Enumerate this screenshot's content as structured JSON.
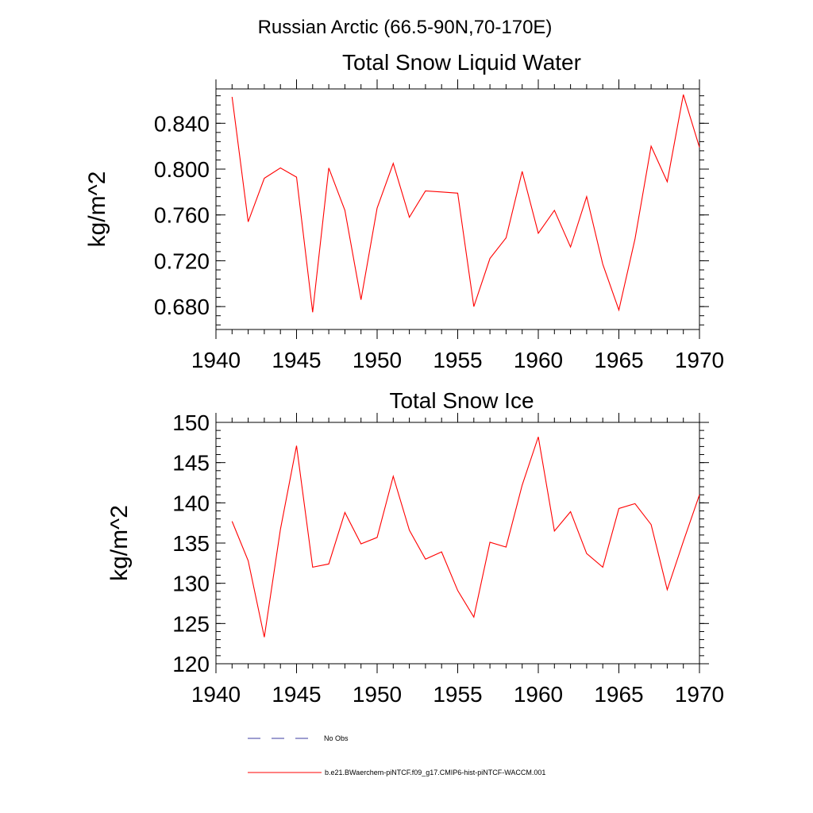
{
  "figure": {
    "title": "Russian Arctic (66.5-90N,70-170E)"
  },
  "colors": {
    "model_line": "#ff0000",
    "obs_line": "#3b3ba0",
    "axis": "#000000"
  },
  "legend": {
    "placement": "bottom-left",
    "items": [
      {
        "label": "No Obs",
        "style": "dashed",
        "color": "#3b3ba0"
      },
      {
        "label": "b.e21.BWaerchem-piNTCF.f09_g17.CMIP6-hist-piNTCF-WACCM.001",
        "style": "solid",
        "color": "#ff0000"
      }
    ]
  },
  "chart_data": [
    {
      "type": "line",
      "title": "Total Snow Liquid Water",
      "xlabel": "",
      "ylabel": "kg/m^2",
      "xlim": [
        1940,
        1970
      ],
      "ylim": [
        0.66,
        0.87
      ],
      "x_ticks": [
        1940,
        1945,
        1950,
        1955,
        1960,
        1965,
        1970
      ],
      "x_tick_labels": [
        "1940",
        "1945",
        "1950",
        "1955",
        "1960",
        "1965",
        "1970"
      ],
      "y_ticks": [
        0.68,
        0.72,
        0.76,
        0.8,
        0.84
      ],
      "y_tick_labels": [
        "0.680",
        "0.720",
        "0.760",
        "0.800",
        "0.840"
      ],
      "grid": false,
      "series": [
        {
          "color": "#ff0000",
          "x": [
            1941,
            1942,
            1943,
            1944,
            1945,
            1946,
            1947,
            1948,
            1949,
            1950,
            1951,
            1952,
            1953,
            1954,
            1955,
            1956,
            1957,
            1958,
            1959,
            1960,
            1961,
            1962,
            1963,
            1964,
            1965,
            1966,
            1967,
            1968,
            1969,
            1970
          ],
          "values": [
            0.863,
            0.754,
            0.792,
            0.801,
            0.793,
            0.675,
            0.801,
            0.764,
            0.686,
            0.766,
            0.805,
            0.758,
            0.781,
            0.78,
            0.779,
            0.68,
            0.722,
            0.74,
            0.798,
            0.744,
            0.764,
            0.732,
            0.776,
            0.717,
            0.677,
            0.739,
            0.82,
            0.789,
            0.865,
            0.819
          ]
        }
      ]
    },
    {
      "type": "line",
      "title": "Total Snow Ice",
      "xlabel": "",
      "ylabel": "kg/m^2",
      "xlim": [
        1940,
        1970
      ],
      "ylim": [
        120,
        150
      ],
      "x_ticks": [
        1940,
        1945,
        1950,
        1955,
        1960,
        1965,
        1970
      ],
      "x_tick_labels": [
        "1940",
        "1945",
        "1950",
        "1955",
        "1960",
        "1965",
        "1970"
      ],
      "y_ticks": [
        120,
        125,
        130,
        135,
        140,
        145,
        150
      ],
      "y_tick_labels": [
        "120",
        "125",
        "130",
        "135",
        "140",
        "145",
        "150"
      ],
      "grid": false,
      "series": [
        {
          "color": "#ff0000",
          "x": [
            1941,
            1942,
            1943,
            1944,
            1945,
            1946,
            1947,
            1948,
            1949,
            1950,
            1951,
            1952,
            1953,
            1954,
            1955,
            1956,
            1957,
            1958,
            1959,
            1960,
            1961,
            1962,
            1963,
            1964,
            1965,
            1966,
            1967,
            1968,
            1969,
            1970
          ],
          "values": [
            137.7,
            132.8,
            123.3,
            136.7,
            147.1,
            132.0,
            132.4,
            138.8,
            134.9,
            135.7,
            143.3,
            136.6,
            133.0,
            133.9,
            129.1,
            125.8,
            135.1,
            134.5,
            142.2,
            148.2,
            136.5,
            138.9,
            133.7,
            132.0,
            139.3,
            139.9,
            137.3,
            129.2,
            135.2,
            141.0
          ]
        }
      ]
    }
  ]
}
